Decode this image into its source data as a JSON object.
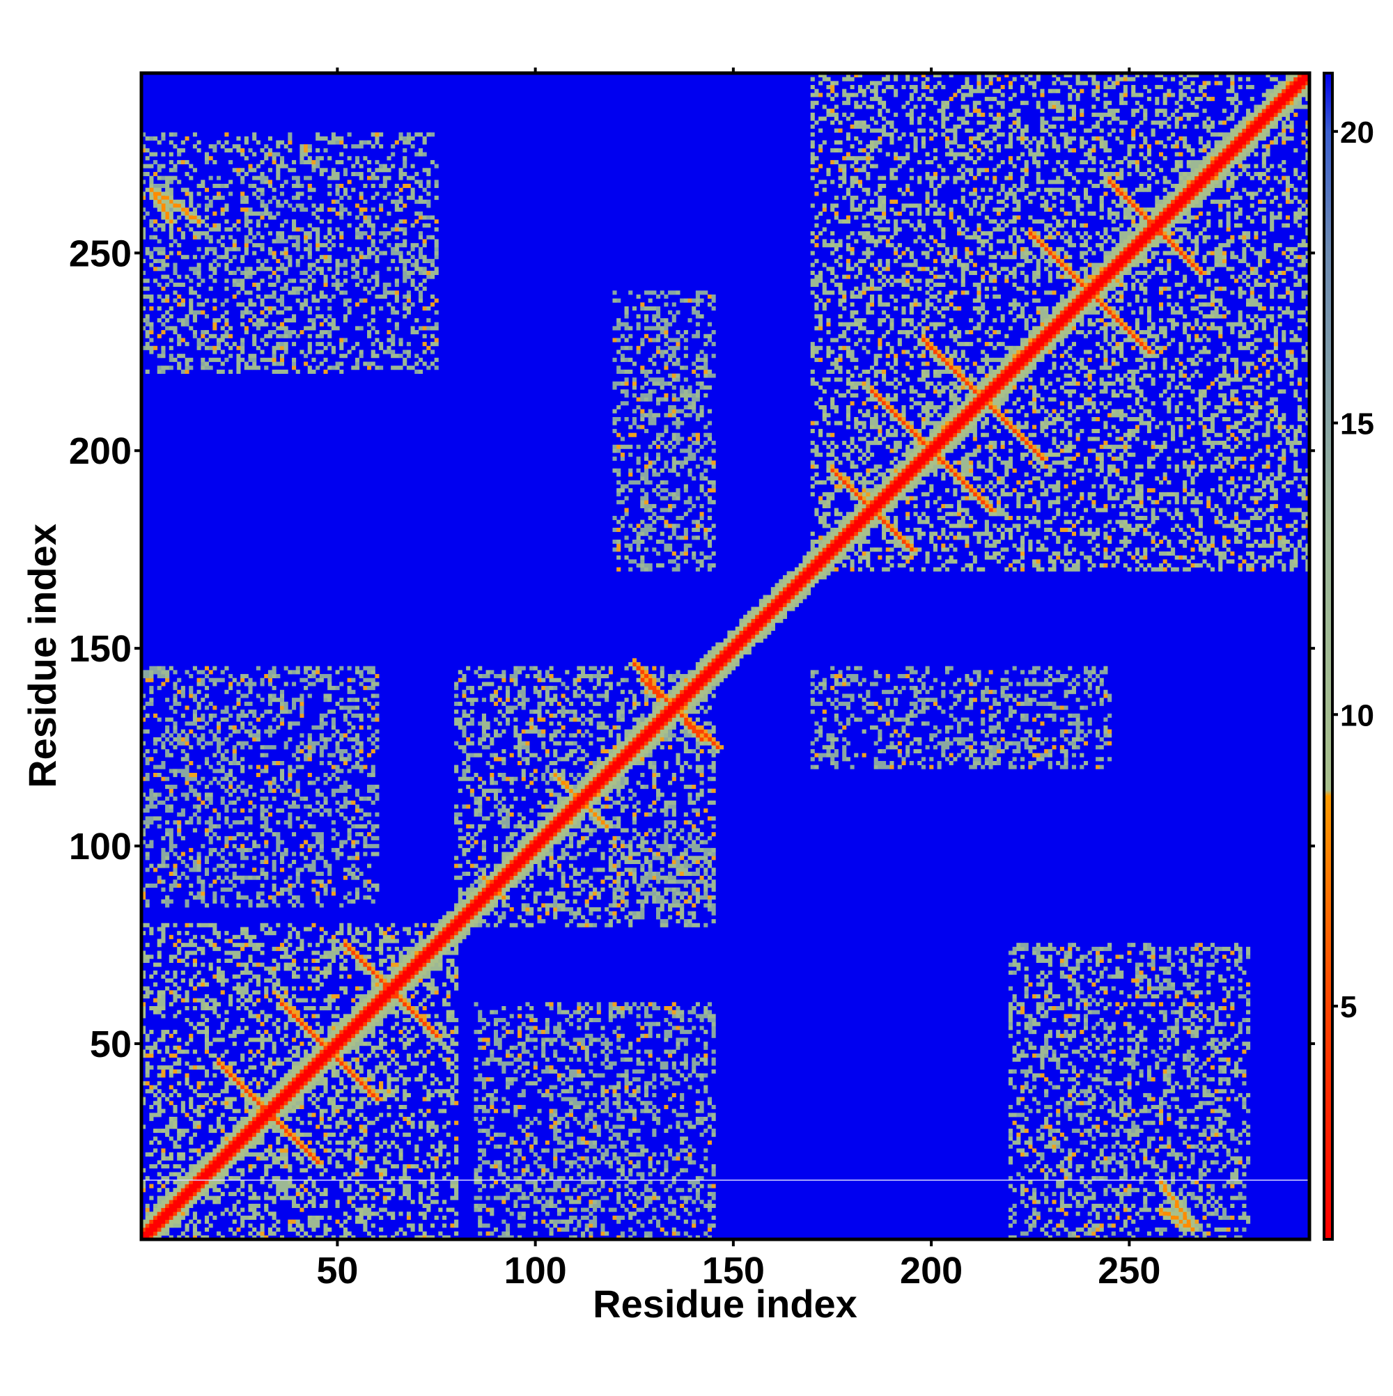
{
  "chart_data": {
    "type": "heatmap",
    "title": "",
    "xlabel": "Residue index",
    "ylabel": "Residue index",
    "xlim": [
      1,
      295
    ],
    "ylim": [
      1,
      295
    ],
    "xticks": [
      50,
      100,
      150,
      200,
      250
    ],
    "yticks": [
      50,
      100,
      150,
      200,
      250
    ],
    "xtick_labels": [
      "50",
      "100",
      "150",
      "200",
      "250"
    ],
    "ytick_labels": [
      "50",
      "100",
      "150",
      "200",
      "250"
    ],
    "grid": false,
    "colorbar": {
      "range": [
        1,
        21
      ],
      "ticks": [
        5,
        10,
        15,
        20
      ],
      "tick_labels": [
        "5",
        "10",
        "15",
        "20"
      ],
      "colors": {
        "low": "#ff0000",
        "mid_low": "#ff8c00",
        "mid": "#9ab88a",
        "high": "#5a7fa8",
        "background": "#0000f0"
      }
    },
    "cmap_note_values": [
      1,
      5,
      8,
      10,
      15,
      20,
      21
    ],
    "diagonal": {
      "from": 1,
      "to": 295,
      "value": 1
    },
    "secondary_structure_contacts": [
      {
        "x": [
          20,
          45
        ],
        "y": [
          45,
          20
        ],
        "value": 4
      },
      {
        "x": [
          36,
          56
        ],
        "y": [
          60,
          40
        ],
        "value": 4
      },
      {
        "x": [
          52,
          75
        ],
        "y": [
          75,
          52
        ],
        "value": 4
      },
      {
        "x": [
          105,
          118
        ],
        "y": [
          118,
          105
        ],
        "value": 5
      },
      {
        "x": [
          87,
          92
        ],
        "y": [
          92,
          87
        ],
        "value": 5
      },
      {
        "x": [
          125,
          142
        ],
        "y": [
          146,
          127
        ],
        "value": 4
      },
      {
        "x": [
          175,
          195
        ],
        "y": [
          195,
          175
        ],
        "value": 4
      },
      {
        "x": [
          185,
          215
        ],
        "y": [
          215,
          185
        ],
        "value": 4
      },
      {
        "x": [
          198,
          228
        ],
        "y": [
          228,
          198
        ],
        "value": 4
      },
      {
        "x": [
          225,
          255
        ],
        "y": [
          255,
          225
        ],
        "value": 4
      },
      {
        "x": [
          245,
          268
        ],
        "y": [
          268,
          245
        ],
        "value": 4
      },
      {
        "x": [
          5,
          15
        ],
        "y": [
          265,
          258
        ],
        "value": 5
      },
      {
        "x": [
          258,
          266
        ],
        "y": [
          8,
          3
        ],
        "value": 5
      }
    ],
    "contact_blocks": [
      {
        "x": [
          1,
          80
        ],
        "y": [
          1,
          80
        ],
        "value": 10
      },
      {
        "x": [
          80,
          145
        ],
        "y": [
          80,
          145
        ],
        "value": 11
      },
      {
        "x": [
          170,
          295
        ],
        "y": [
          170,
          295
        ],
        "value": 10
      },
      {
        "x": [
          1,
          75
        ],
        "y": [
          220,
          280
        ],
        "value": 11
      },
      {
        "x": [
          220,
          280
        ],
        "y": [
          1,
          75
        ],
        "value": 11
      },
      {
        "x": [
          120,
          145
        ],
        "y": [
          170,
          240
        ],
        "value": 12
      },
      {
        "x": [
          170,
          245
        ],
        "y": [
          120,
          145
        ],
        "value": 12
      },
      {
        "x": [
          1,
          60
        ],
        "y": [
          85,
          145
        ],
        "value": 12
      },
      {
        "x": [
          85,
          145
        ],
        "y": [
          1,
          60
        ],
        "value": 12
      },
      {
        "x": [
          120,
          145
        ],
        "y": [
          85,
          100
        ],
        "value": 12
      }
    ]
  }
}
